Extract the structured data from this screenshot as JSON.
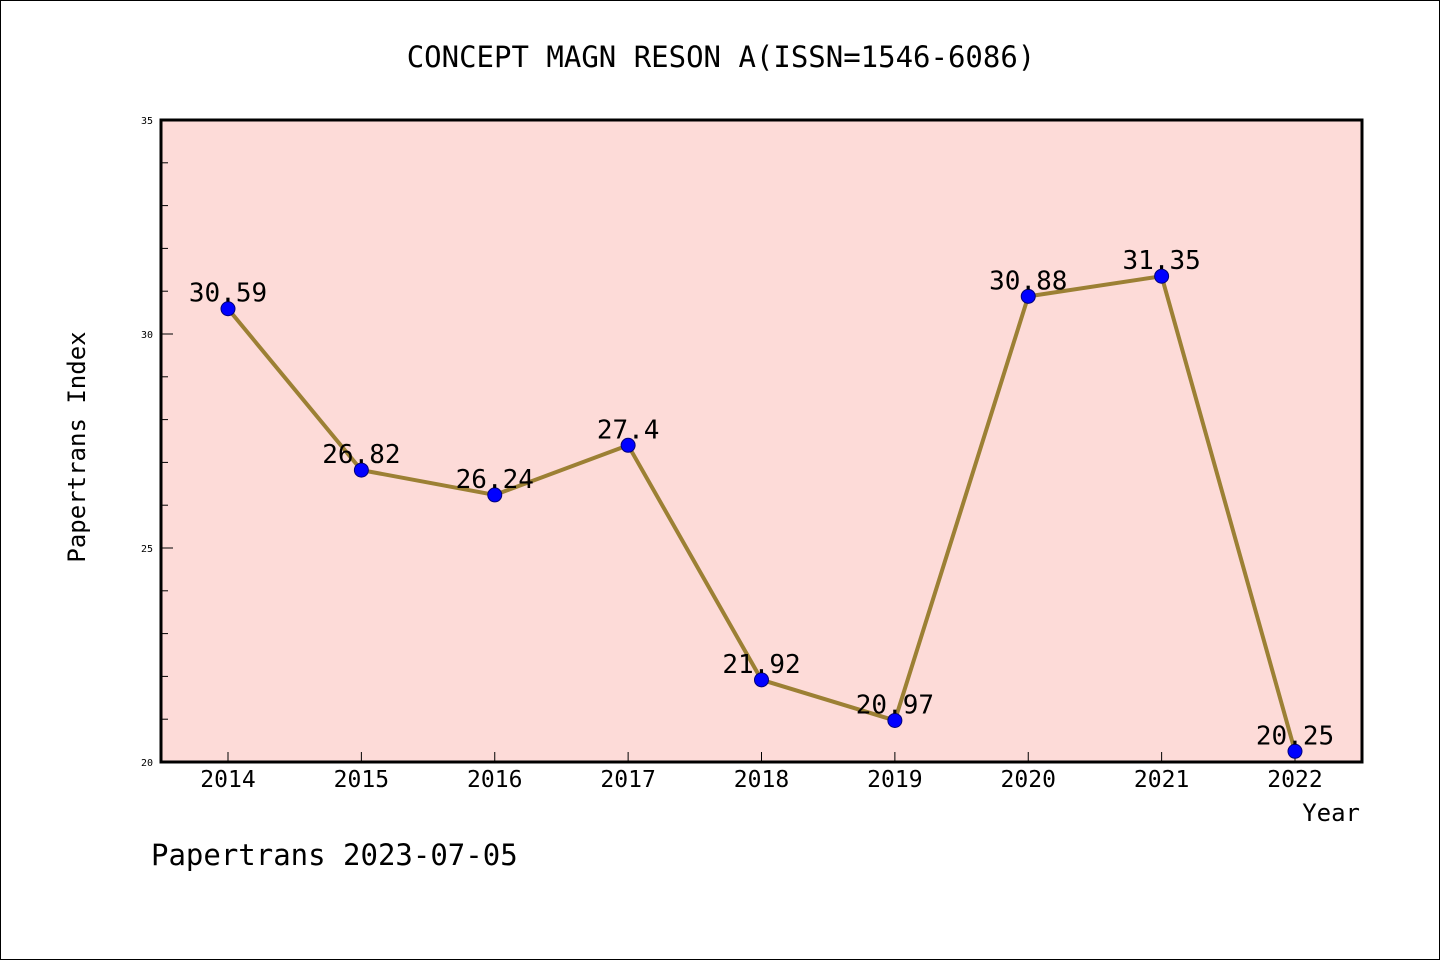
{
  "chart_data": {
    "type": "line",
    "title": "CONCEPT MAGN RESON A(ISSN=1546-6086)",
    "xlabel": "Year",
    "ylabel": "Papertrans Index",
    "categories": [
      "2014",
      "2015",
      "2016",
      "2017",
      "2018",
      "2019",
      "2020",
      "2021",
      "2022"
    ],
    "series": [
      {
        "values": [
          30.59,
          26.82,
          26.24,
          27.4,
          21.92,
          20.97,
          30.88,
          31.35,
          20.25
        ],
        "labels": [
          "30.59",
          "26.82",
          "26.24",
          "27.4",
          "21.92",
          "20.97",
          "30.88",
          "31.35",
          "20.25"
        ]
      }
    ],
    "ylim": [
      20,
      35
    ],
    "y_ticks": [
      "20",
      "25",
      "30",
      "35"
    ],
    "grid": false,
    "colors": {
      "plot_background": "#fddbd8",
      "line": "#9c8034",
      "marker": "#0000ff"
    }
  },
  "footer": {
    "watermark": "Papertrans 2023-07-05"
  }
}
